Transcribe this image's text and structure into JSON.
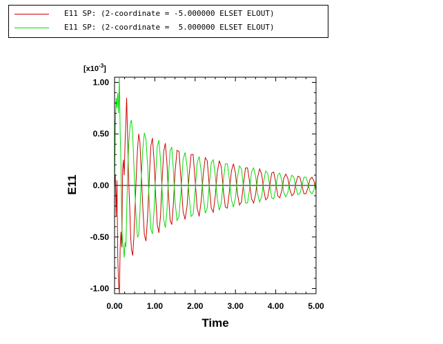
{
  "chart_data": {
    "type": "line",
    "xlabel": "Time",
    "ylabel": "E11",
    "y_scale_note": "[x10",
    "y_scale_exp": "-3",
    "xlim": [
      0,
      5
    ],
    "ylim": [
      -1.05,
      1.05
    ],
    "x_ticks": [
      0,
      1,
      2,
      3,
      4,
      5
    ],
    "x_tick_labels": [
      "0.00",
      "1.00",
      "2.00",
      "3.00",
      "4.00",
      "5.00"
    ],
    "y_ticks": [
      1,
      0.5,
      0,
      -0.5,
      -1
    ],
    "y_tick_labels": [
      "1.00",
      "0.50",
      "0.00",
      "-0.50",
      "-1.00"
    ],
    "legend_position": "top-left",
    "grid": false,
    "series": [
      {
        "name": "E11 SP: (2-coordinate = -5.000000 ELSET ELOUT)",
        "color": "#cc0000",
        "x": [
          0.0,
          0.02,
          0.04,
          0.06,
          0.08,
          0.1,
          0.12,
          0.14,
          0.16,
          0.18,
          0.2,
          0.22,
          0.24,
          0.26,
          0.28,
          0.3,
          0.32,
          0.34,
          0.36,
          0.38,
          0.4,
          0.42,
          0.45,
          0.48,
          0.51,
          0.54,
          0.57,
          0.6,
          0.63,
          0.66,
          0.7,
          0.74,
          0.78,
          0.82,
          0.86,
          0.9,
          0.94,
          0.98,
          1.02,
          1.06,
          1.1,
          1.14,
          1.18,
          1.22,
          1.26,
          1.3,
          1.34,
          1.38,
          1.42,
          1.46,
          1.5,
          1.55,
          1.6,
          1.65,
          1.7,
          1.75,
          1.8,
          1.85,
          1.9,
          1.95,
          2.0,
          2.05,
          2.1,
          2.15,
          2.2,
          2.25,
          2.3,
          2.35,
          2.4,
          2.45,
          2.5,
          2.55,
          2.6,
          2.65,
          2.7,
          2.75,
          2.8,
          2.85,
          2.9,
          2.95,
          3.0,
          3.05,
          3.1,
          3.15,
          3.2,
          3.25,
          3.3,
          3.35,
          3.4,
          3.45,
          3.5,
          3.55,
          3.6,
          3.65,
          3.7,
          3.75,
          3.8,
          3.85,
          3.9,
          3.95,
          4.0,
          4.05,
          4.1,
          4.15,
          4.2,
          4.25,
          4.3,
          4.35,
          4.4,
          4.45,
          4.5,
          4.55,
          4.6,
          4.65,
          4.7,
          4.75,
          4.8,
          4.85,
          4.9,
          4.95,
          5.0
        ],
        "values": [
          0.0,
          0.1,
          -0.3,
          0.05,
          -0.7,
          -0.95,
          -1.05,
          -0.6,
          -0.45,
          -0.6,
          0.15,
          0.25,
          0.1,
          0.4,
          0.6,
          0.85,
          0.55,
          0.2,
          -0.05,
          -0.25,
          -0.5,
          -0.62,
          -0.68,
          -0.5,
          -0.2,
          0.1,
          0.35,
          0.5,
          0.42,
          0.15,
          -0.2,
          -0.48,
          -0.54,
          -0.3,
          0.05,
          0.38,
          0.46,
          0.25,
          -0.1,
          -0.38,
          -0.46,
          -0.3,
          0.05,
          0.33,
          0.41,
          0.22,
          -0.1,
          -0.34,
          -0.38,
          -0.18,
          0.12,
          0.34,
          0.33,
          0.05,
          -0.25,
          -0.33,
          -0.2,
          0.1,
          0.3,
          0.3,
          0.05,
          -0.22,
          -0.3,
          -0.15,
          0.1,
          0.27,
          0.24,
          0.0,
          -0.22,
          -0.26,
          -0.1,
          0.13,
          0.24,
          0.18,
          -0.05,
          -0.21,
          -0.22,
          -0.06,
          0.14,
          0.21,
          0.12,
          -0.08,
          -0.19,
          -0.16,
          0.02,
          0.17,
          0.17,
          0.04,
          -0.13,
          -0.17,
          -0.09,
          0.08,
          0.16,
          0.11,
          -0.04,
          -0.14,
          -0.12,
          0.0,
          0.12,
          0.13,
          0.03,
          -0.1,
          -0.12,
          -0.05,
          0.07,
          0.11,
          0.07,
          -0.04,
          -0.1,
          -0.08,
          0.02,
          0.09,
          0.08,
          0.0,
          -0.08,
          -0.08,
          -0.02,
          0.06,
          0.08,
          0.04,
          -0.05
        ]
      },
      {
        "name": "E11 SP: (2-coordinate =  5.000000 ELSET ELOUT)",
        "color": "#00dd00",
        "x": [
          0.0,
          0.02,
          0.04,
          0.06,
          0.08,
          0.1,
          0.12,
          0.14,
          0.16,
          0.18,
          0.2,
          0.22,
          0.24,
          0.26,
          0.28,
          0.3,
          0.32,
          0.34,
          0.36,
          0.38,
          0.4,
          0.42,
          0.45,
          0.48,
          0.51,
          0.54,
          0.57,
          0.6,
          0.63,
          0.66,
          0.7,
          0.74,
          0.78,
          0.82,
          0.86,
          0.9,
          0.94,
          0.98,
          1.02,
          1.06,
          1.1,
          1.14,
          1.18,
          1.22,
          1.26,
          1.3,
          1.34,
          1.38,
          1.42,
          1.46,
          1.5,
          1.55,
          1.6,
          1.65,
          1.7,
          1.75,
          1.8,
          1.85,
          1.9,
          1.95,
          2.0,
          2.05,
          2.1,
          2.15,
          2.2,
          2.25,
          2.3,
          2.35,
          2.4,
          2.45,
          2.5,
          2.55,
          2.6,
          2.65,
          2.7,
          2.75,
          2.8,
          2.85,
          2.9,
          2.95,
          3.0,
          3.05,
          3.1,
          3.15,
          3.2,
          3.25,
          3.3,
          3.35,
          3.4,
          3.45,
          3.5,
          3.55,
          3.6,
          3.65,
          3.7,
          3.75,
          3.8,
          3.85,
          3.9,
          3.95,
          4.0,
          4.05,
          4.1,
          4.15,
          4.2,
          4.25,
          4.3,
          4.35,
          4.4,
          4.45,
          4.5,
          4.55,
          4.6,
          4.65,
          4.7,
          4.75,
          4.8,
          4.85,
          4.9,
          4.95,
          5.0
        ],
        "values": [
          0.0,
          0.6,
          0.85,
          0.75,
          0.9,
          0.7,
          1.05,
          0.5,
          0.2,
          -0.4,
          -0.55,
          -0.6,
          -0.7,
          -0.55,
          -0.6,
          -0.3,
          0.05,
          0.3,
          0.45,
          0.55,
          0.62,
          0.63,
          0.5,
          0.2,
          -0.1,
          -0.35,
          -0.5,
          -0.48,
          -0.25,
          0.05,
          0.35,
          0.51,
          0.45,
          0.2,
          -0.15,
          -0.42,
          -0.47,
          -0.25,
          0.1,
          0.38,
          0.44,
          0.25,
          -0.05,
          -0.33,
          -0.41,
          -0.25,
          0.1,
          0.34,
          0.37,
          0.15,
          -0.15,
          -0.34,
          -0.3,
          -0.05,
          0.25,
          0.32,
          0.18,
          -0.1,
          -0.3,
          -0.28,
          -0.05,
          0.22,
          0.28,
          0.14,
          -0.1,
          -0.27,
          -0.22,
          0.0,
          0.22,
          0.25,
          0.1,
          -0.13,
          -0.24,
          -0.17,
          0.05,
          0.21,
          0.21,
          0.06,
          -0.14,
          -0.21,
          -0.12,
          0.08,
          0.19,
          0.16,
          -0.02,
          -0.17,
          -0.17,
          -0.04,
          0.13,
          0.17,
          0.09,
          -0.08,
          -0.16,
          -0.11,
          0.04,
          0.14,
          0.12,
          0.0,
          -0.12,
          -0.13,
          -0.03,
          0.1,
          0.12,
          0.05,
          -0.07,
          -0.11,
          -0.07,
          0.04,
          0.1,
          0.08,
          -0.02,
          -0.09,
          -0.08,
          0.0,
          0.08,
          0.08,
          0.02,
          -0.06,
          -0.08,
          -0.04,
          0.05
        ]
      }
    ]
  }
}
